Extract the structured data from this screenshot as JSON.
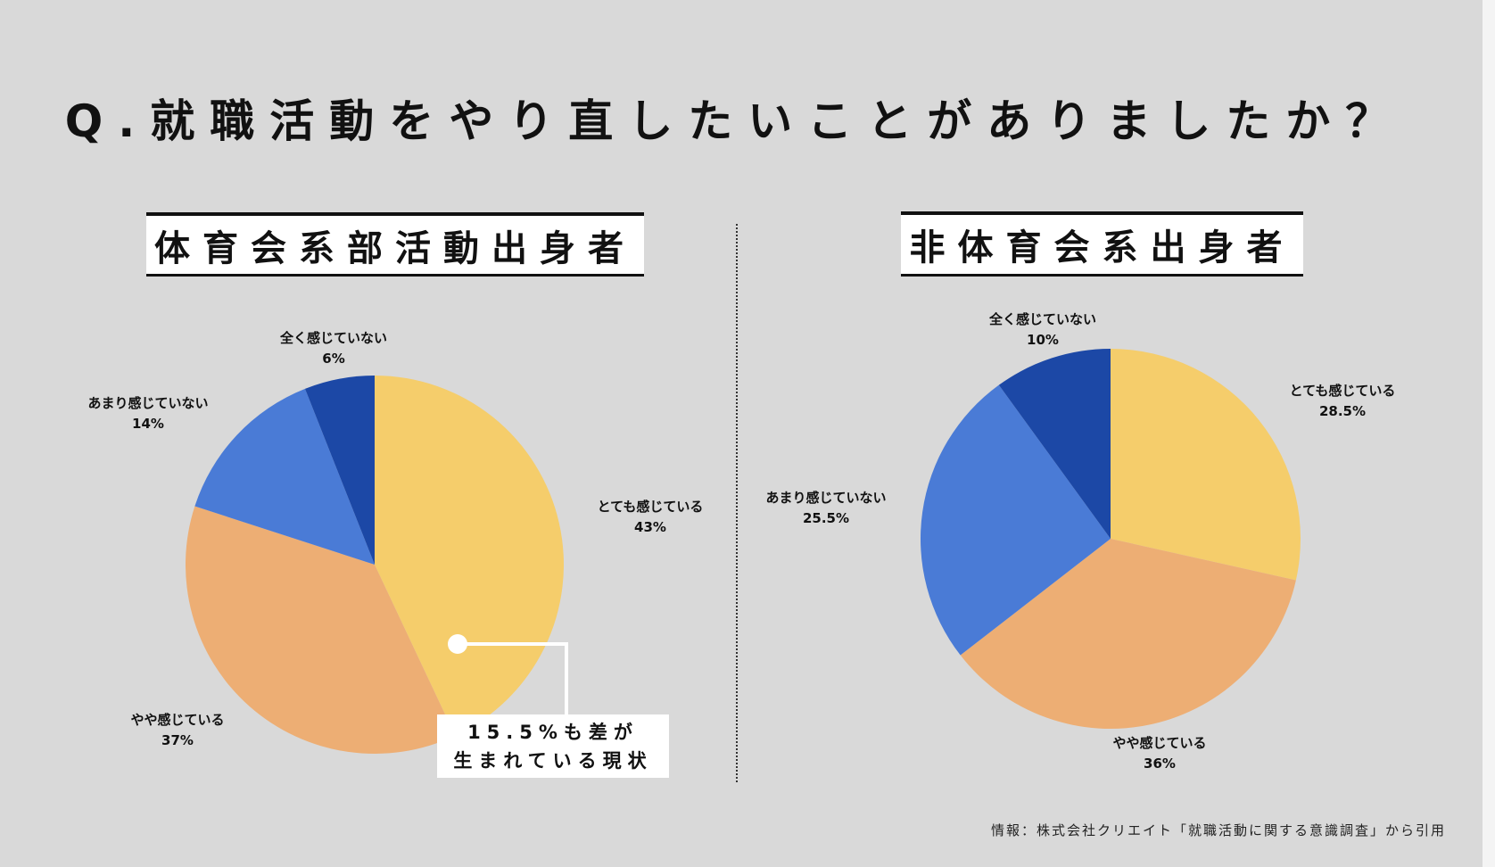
{
  "title": "Q.就職活動をやり直したいことがありましたか？",
  "source": "情報：株式会社クリエイト「就職活動に関する意識調査」から引用",
  "colors": {
    "background": "#d9d9d9",
    "very": "#f5cd6b",
    "somewhat": "#edae74",
    "not_much": "#4a7bd6",
    "not_at_all": "#1c48a6"
  },
  "callout": {
    "line1": "15.5%も差が",
    "line2": "生まれている現状"
  },
  "chart_data": [
    {
      "type": "pie",
      "title": "体育会系部活動出身者",
      "start": "top",
      "direction": "clockwise",
      "slices": [
        {
          "label": "とても感じている",
          "value": 43,
          "text": "43%",
          "color": "#f5cd6b"
        },
        {
          "label": "やや感じている",
          "value": 37,
          "text": "37%",
          "color": "#edae74"
        },
        {
          "label": "あまり感じていない",
          "value": 14,
          "text": "14%",
          "color": "#4a7bd6"
        },
        {
          "label": "全く感じていない",
          "value": 6,
          "text": "6%",
          "color": "#1c48a6"
        }
      ]
    },
    {
      "type": "pie",
      "title": "非体育会系出身者",
      "start": "top",
      "direction": "clockwise",
      "slices": [
        {
          "label": "とても感じている",
          "value": 28.5,
          "text": "28.5%",
          "color": "#f5cd6b"
        },
        {
          "label": "やや感じている",
          "value": 36,
          "text": "36%",
          "color": "#edae74"
        },
        {
          "label": "あまり感じていない",
          "value": 25.5,
          "text": "25.5%",
          "color": "#4a7bd6"
        },
        {
          "label": "全く感じていない",
          "value": 10,
          "text": "10%",
          "color": "#1c48a6"
        }
      ]
    }
  ]
}
